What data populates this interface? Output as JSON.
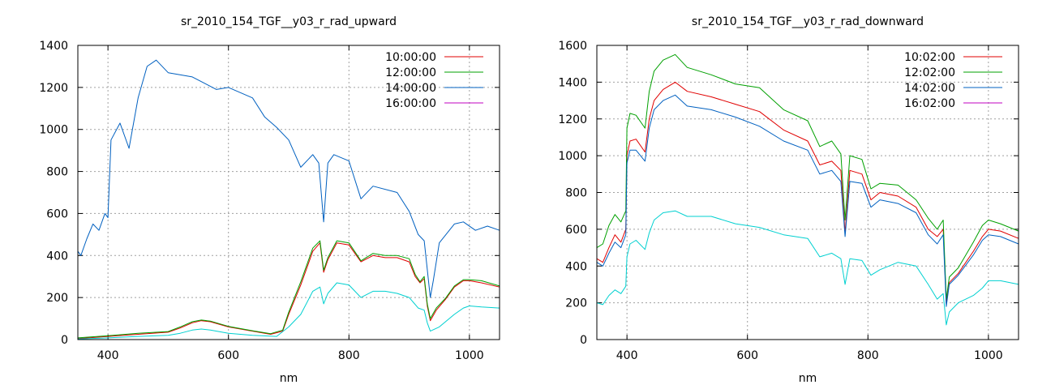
{
  "chart_data": [
    {
      "type": "line",
      "title": "sr_2010_154_TGF__y03_r_rad_upward",
      "xlabel": "nm",
      "ylabel": "",
      "xlim": [
        350,
        1050
      ],
      "ylim": [
        0,
        1400
      ],
      "xticks": [
        400,
        600,
        800,
        1000
      ],
      "yticks": [
        0,
        200,
        400,
        600,
        800,
        1000,
        1200,
        1400
      ],
      "grid": true,
      "legend_position": "top-right",
      "series": [
        {
          "name": "10:00:00",
          "color": "#e00000",
          "x": [
            350,
            400,
            450,
            500,
            520,
            540,
            555,
            570,
            600,
            640,
            670,
            690,
            700,
            720,
            740,
            752,
            758,
            765,
            780,
            800,
            820,
            840,
            860,
            880,
            900,
            910,
            918,
            925,
            930,
            935,
            945,
            960,
            975,
            990,
            1000,
            1020,
            1050
          ],
          "y": [
            5,
            15,
            25,
            35,
            55,
            80,
            90,
            85,
            60,
            40,
            25,
            40,
            120,
            260,
            420,
            460,
            320,
            380,
            460,
            450,
            370,
            400,
            390,
            390,
            370,
            300,
            270,
            290,
            160,
            90,
            140,
            190,
            250,
            280,
            280,
            270,
            250
          ]
        },
        {
          "name": "12:00:00",
          "color": "#00a000",
          "x": [
            350,
            400,
            450,
            500,
            520,
            540,
            555,
            570,
            600,
            640,
            670,
            690,
            700,
            720,
            740,
            752,
            758,
            765,
            780,
            800,
            820,
            840,
            860,
            880,
            900,
            910,
            918,
            925,
            930,
            935,
            945,
            960,
            975,
            990,
            1000,
            1020,
            1050
          ],
          "y": [
            8,
            18,
            30,
            38,
            60,
            85,
            93,
            88,
            63,
            42,
            28,
            45,
            130,
            275,
            435,
            470,
            330,
            390,
            470,
            460,
            375,
            410,
            400,
            400,
            385,
            310,
            275,
            300,
            170,
            100,
            150,
            195,
            255,
            285,
            285,
            280,
            255
          ]
        },
        {
          "name": "14:00:00",
          "color": "#0060c0",
          "x": [
            350,
            355,
            365,
            375,
            385,
            395,
            400,
            405,
            420,
            435,
            450,
            465,
            480,
            500,
            540,
            580,
            600,
            640,
            660,
            680,
            700,
            720,
            740,
            750,
            758,
            765,
            775,
            800,
            820,
            840,
            880,
            900,
            915,
            925,
            935,
            940,
            950,
            975,
            990,
            1010,
            1030,
            1050
          ],
          "y": [
            420,
            400,
            480,
            550,
            520,
            600,
            580,
            950,
            1030,
            910,
            1150,
            1300,
            1330,
            1270,
            1250,
            1190,
            1200,
            1150,
            1060,
            1010,
            950,
            820,
            880,
            840,
            560,
            840,
            880,
            850,
            670,
            730,
            700,
            610,
            500,
            470,
            200,
            280,
            460,
            550,
            560,
            520,
            540,
            520
          ]
        },
        {
          "name": "16:00:00",
          "color": "#c000c0",
          "x": [],
          "y": []
        },
        {
          "name": "",
          "color": "#00d0d0",
          "x": [
            350,
            400,
            450,
            500,
            520,
            540,
            555,
            570,
            600,
            640,
            680,
            700,
            720,
            740,
            752,
            758,
            765,
            780,
            800,
            820,
            840,
            860,
            880,
            900,
            915,
            925,
            930,
            935,
            950,
            975,
            990,
            1000,
            1020,
            1050
          ],
          "y": [
            3,
            8,
            15,
            20,
            30,
            45,
            50,
            45,
            30,
            20,
            15,
            60,
            120,
            230,
            250,
            170,
            220,
            270,
            260,
            200,
            230,
            230,
            220,
            200,
            150,
            140,
            80,
            40,
            60,
            120,
            150,
            160,
            155,
            150
          ]
        }
      ]
    },
    {
      "type": "line",
      "title": "sr_2010_154_TGF__y03_r_rad_downward",
      "xlabel": "nm",
      "ylabel": "",
      "xlim": [
        350,
        1050
      ],
      "ylim": [
        0,
        1600
      ],
      "xticks": [
        400,
        600,
        800,
        1000
      ],
      "yticks": [
        0,
        200,
        400,
        600,
        800,
        1000,
        1200,
        1400,
        1600
      ],
      "grid": true,
      "legend_position": "top-right",
      "series": [
        {
          "name": "10:02:00",
          "color": "#e00000",
          "x": [
            350,
            360,
            370,
            380,
            390,
            398,
            400,
            405,
            415,
            430,
            437,
            445,
            460,
            480,
            500,
            540,
            580,
            620,
            660,
            700,
            720,
            740,
            755,
            762,
            770,
            790,
            805,
            820,
            850,
            880,
            900,
            915,
            925,
            930,
            935,
            950,
            975,
            990,
            1000,
            1020,
            1050
          ],
          "y": [
            440,
            420,
            500,
            570,
            530,
            600,
            1000,
            1080,
            1090,
            1020,
            1200,
            1300,
            1360,
            1400,
            1350,
            1320,
            1280,
            1240,
            1140,
            1080,
            950,
            970,
            920,
            580,
            920,
            900,
            760,
            800,
            780,
            720,
            600,
            560,
            600,
            200,
            310,
            360,
            480,
            560,
            600,
            590,
            550
          ]
        },
        {
          "name": "12:02:00",
          "color": "#00a000",
          "x": [
            350,
            360,
            370,
            380,
            390,
            398,
            400,
            405,
            415,
            430,
            437,
            445,
            460,
            480,
            500,
            540,
            580,
            620,
            660,
            700,
            720,
            740,
            755,
            762,
            770,
            790,
            805,
            820,
            850,
            880,
            900,
            915,
            925,
            930,
            935,
            950,
            975,
            990,
            1000,
            1020,
            1050
          ],
          "y": [
            500,
            520,
            620,
            680,
            640,
            700,
            1150,
            1230,
            1220,
            1150,
            1350,
            1460,
            1520,
            1550,
            1480,
            1440,
            1390,
            1370,
            1250,
            1190,
            1050,
            1080,
            1010,
            650,
            1000,
            980,
            820,
            850,
            840,
            760,
            660,
            600,
            650,
            220,
            340,
            390,
            530,
            620,
            650,
            630,
            590
          ]
        },
        {
          "name": "14:02:00",
          "color": "#0060c0",
          "x": [
            350,
            360,
            370,
            380,
            390,
            398,
            400,
            405,
            415,
            430,
            437,
            445,
            460,
            480,
            500,
            540,
            580,
            620,
            660,
            700,
            720,
            740,
            755,
            762,
            770,
            790,
            805,
            820,
            850,
            880,
            900,
            915,
            925,
            930,
            935,
            950,
            975,
            990,
            1000,
            1020,
            1050
          ],
          "y": [
            420,
            400,
            470,
            530,
            500,
            570,
            960,
            1030,
            1030,
            970,
            1150,
            1250,
            1300,
            1330,
            1270,
            1250,
            1210,
            1160,
            1080,
            1030,
            900,
            920,
            860,
            560,
            860,
            850,
            720,
            760,
            740,
            690,
            570,
            520,
            570,
            180,
            300,
            350,
            460,
            540,
            570,
            560,
            520
          ]
        },
        {
          "name": "16:02:00",
          "color": "#c000c0",
          "x": [],
          "y": []
        },
        {
          "name": "",
          "color": "#00d0d0",
          "x": [
            350,
            360,
            370,
            380,
            390,
            398,
            400,
            405,
            415,
            430,
            437,
            445,
            460,
            480,
            500,
            540,
            580,
            620,
            660,
            700,
            720,
            740,
            755,
            762,
            770,
            790,
            805,
            820,
            850,
            880,
            900,
            915,
            925,
            930,
            935,
            950,
            975,
            990,
            1000,
            1020,
            1050
          ],
          "y": [
            200,
            190,
            240,
            270,
            250,
            290,
            450,
            520,
            540,
            490,
            580,
            650,
            690,
            700,
            670,
            670,
            630,
            610,
            570,
            550,
            450,
            470,
            440,
            300,
            440,
            430,
            350,
            380,
            420,
            400,
            300,
            220,
            250,
            80,
            150,
            200,
            240,
            280,
            320,
            320,
            300
          ]
        }
      ]
    }
  ]
}
